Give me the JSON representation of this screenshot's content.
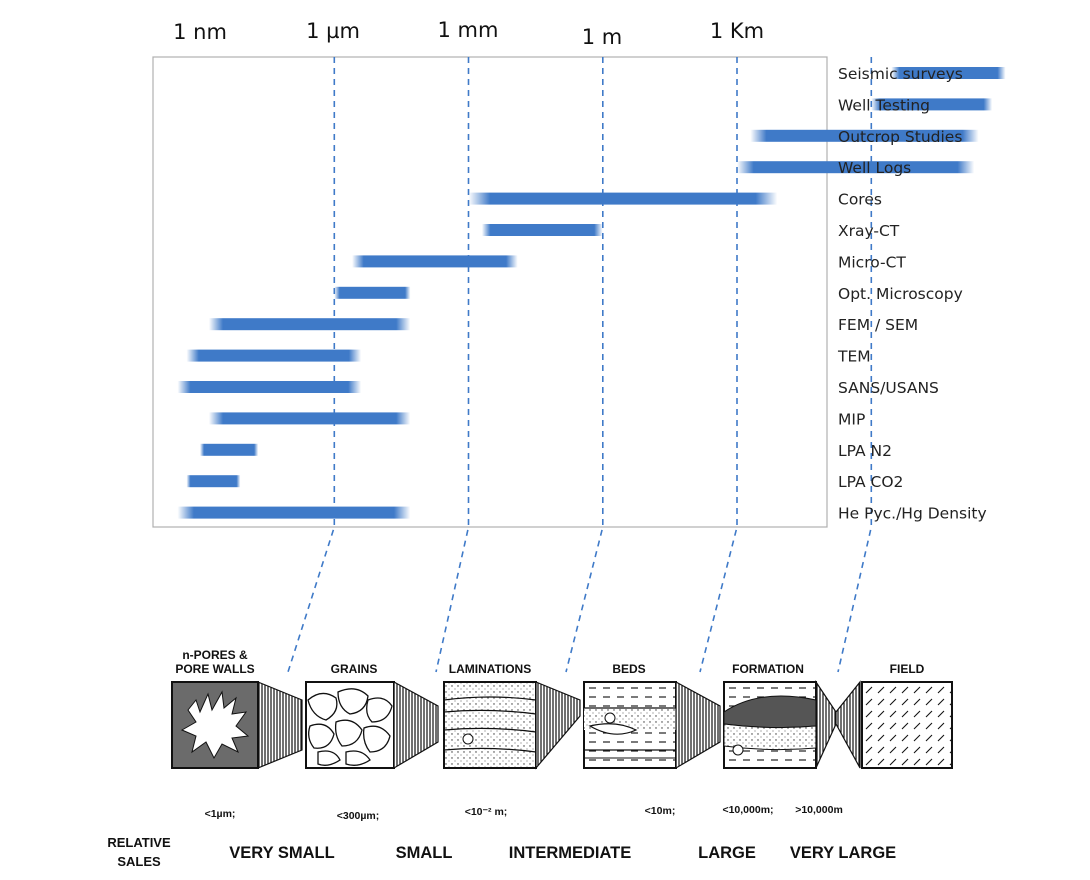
{
  "scale_axis": {
    "ticks": [
      "1 nm",
      "1 µm",
      "1 mm",
      "1 m",
      "1 Km"
    ]
  },
  "methods": [
    {
      "name": "Seismic surveys",
      "range": [
        6.45,
        9.0
      ]
    },
    {
      "name": "Well Testing",
      "range": [
        6.0,
        8.7
      ]
    },
    {
      "name": "Outcrop Studies",
      "range": [
        3.3,
        8.4
      ]
    },
    {
      "name": "Well Logs",
      "range": [
        3.0,
        8.3
      ]
    },
    {
      "name": "Cores",
      "range": [
        -3.0,
        3.9
      ]
    },
    {
      "name": "Xray-CT",
      "range": [
        -2.7,
        0.0
      ]
    },
    {
      "name": "Micro-CT",
      "range": [
        -5.6,
        -1.9
      ]
    },
    {
      "name": "Opt. Microscopy",
      "range": [
        -6.0,
        -4.3
      ]
    },
    {
      "name": "FEM / SEM",
      "range": [
        -8.8,
        -4.3
      ]
    },
    {
      "name": "TEM",
      "range": [
        -9.3,
        -5.4
      ]
    },
    {
      "name": "SANS/USANS",
      "range": [
        -9.5,
        -5.4
      ]
    },
    {
      "name": "MIP",
      "range": [
        -8.8,
        -4.3
      ]
    },
    {
      "name": "LPA N2",
      "range": [
        -9.0,
        -7.7
      ]
    },
    {
      "name": "LPA CO2",
      "range": [
        -9.3,
        -8.1
      ]
    },
    {
      "name": "He Pyc./Hg Density",
      "range": [
        -9.5,
        -4.3
      ]
    }
  ],
  "divisions": [
    -6,
    -3,
    0,
    3,
    6
  ],
  "colors": {
    "bar": "#3f7ac8",
    "divider": "#3f7ac8",
    "frame": "#b0b0b0"
  },
  "panels": [
    {
      "label_lines": [
        "n-PORES &",
        "PORE WALLS"
      ],
      "texture": "pores"
    },
    {
      "label_lines": [
        "GRAINS"
      ],
      "texture": "grains"
    },
    {
      "label_lines": [
        "LAMINATIONS"
      ],
      "texture": "laminations"
    },
    {
      "label_lines": [
        "BEDS"
      ],
      "texture": "beds"
    },
    {
      "label_lines": [
        "FORMATION"
      ],
      "texture": "formation"
    },
    {
      "label_lines": [
        "FIELD"
      ],
      "texture": "field"
    }
  ],
  "size_labels": [
    "<1µm;",
    "<300µm;",
    "<10⁻² m;",
    "<10m;",
    "<10,000m;",
    ">10,000m"
  ],
  "relative_scales": {
    "heading_lines": [
      "RELATIVE",
      "SALES"
    ],
    "items": [
      "VERY SMALL",
      "SMALL",
      "INTERMEDIATE",
      "LARGE",
      "VERY LARGE"
    ]
  }
}
